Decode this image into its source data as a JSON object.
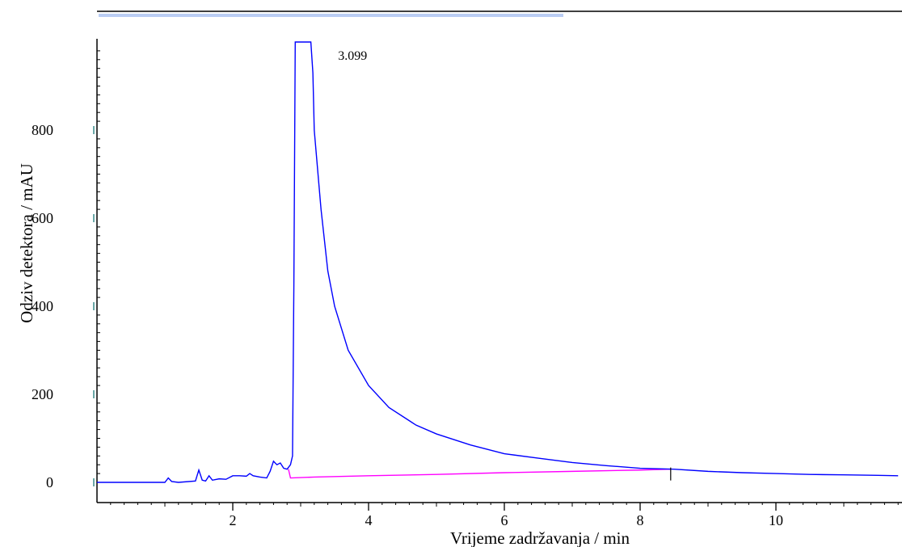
{
  "chart_data": {
    "type": "line",
    "title": "",
    "xlabel": "Vrijeme zadržavanja / min",
    "ylabel": "Odziv detektora / mAU",
    "xlim": [
      0,
      11.8
    ],
    "ylim": [
      -10,
      1000
    ],
    "x_ticks": [
      2,
      4,
      6,
      8,
      10
    ],
    "x_tick_labels": [
      "2",
      "4",
      "6",
      "8",
      "10"
    ],
    "y_ticks": [
      0,
      200,
      400,
      600,
      800
    ],
    "y_tick_labels": [
      "0",
      "200",
      "400",
      "600",
      "800"
    ],
    "grid": false,
    "legend": "none",
    "series": [
      {
        "role": "signal",
        "color": "#0000ff",
        "x": [
          0.0,
          1.0,
          1.05,
          1.1,
          1.2,
          1.45,
          1.5,
          1.55,
          1.6,
          1.65,
          1.7,
          1.8,
          1.9,
          2.0,
          2.1,
          2.2,
          2.25,
          2.3,
          2.4,
          2.5,
          2.55,
          2.6,
          2.65,
          2.7,
          2.75,
          2.8,
          2.85,
          2.88,
          2.9,
          2.92,
          3.0,
          3.15,
          3.18,
          3.2,
          3.3,
          3.4,
          3.5,
          3.7,
          4.0,
          4.3,
          4.7,
          5.0,
          5.5,
          6.0,
          6.5,
          7.0,
          7.5,
          8.0,
          8.5,
          9.0,
          9.5,
          10.0,
          10.5,
          11.0,
          11.5,
          11.8
        ],
        "y": [
          0,
          0,
          10,
          2,
          0,
          3,
          28,
          5,
          3,
          15,
          5,
          8,
          7,
          15,
          15,
          14,
          20,
          15,
          12,
          10,
          25,
          48,
          40,
          44,
          32,
          30,
          40,
          60,
          450,
          1000,
          1000,
          1000,
          930,
          800,
          620,
          480,
          400,
          300,
          220,
          170,
          130,
          110,
          85,
          65,
          55,
          45,
          38,
          32,
          30,
          25,
          22,
          20,
          18,
          17,
          16,
          15
        ]
      },
      {
        "role": "baseline",
        "color": "#ff00ff",
        "x": [
          2.82,
          2.85,
          3.2,
          4.0,
          5.0,
          6.0,
          7.0,
          8.0,
          8.45
        ],
        "y": [
          30,
          10,
          12,
          15,
          18,
          22,
          25,
          28,
          30
        ]
      }
    ],
    "annotations": [
      {
        "text": "3.099",
        "x": 3.55,
        "y": 960
      }
    ]
  }
}
